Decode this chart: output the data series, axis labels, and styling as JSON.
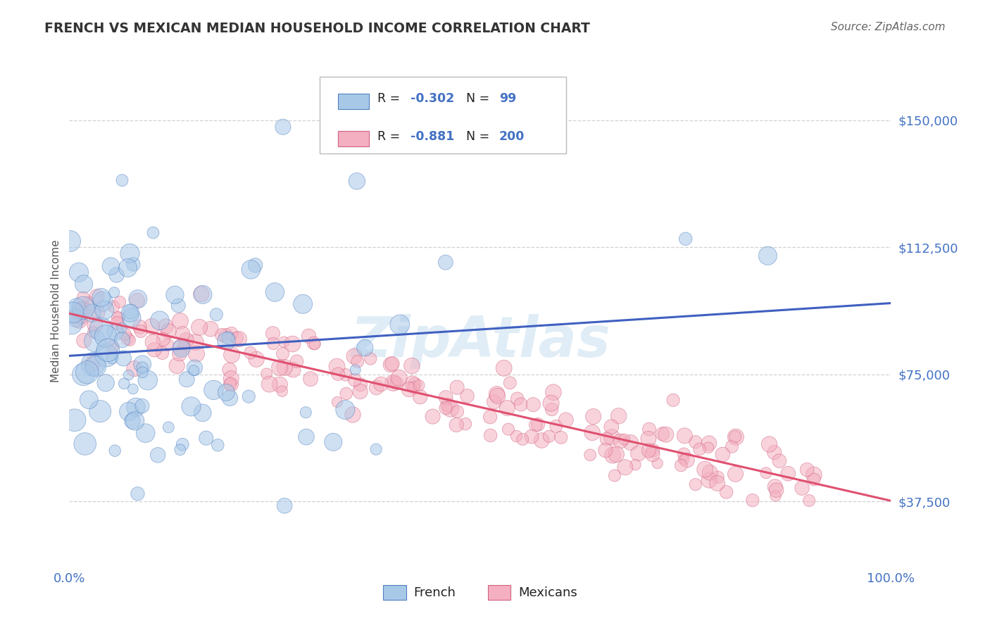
{
  "title": "FRENCH VS MEXICAN MEDIAN HOUSEHOLD INCOME CORRELATION CHART",
  "source_text": "Source: ZipAtlas.com",
  "ylabel": "Median Household Income",
  "watermark": "ZipAtlas",
  "xmin": 0.0,
  "xmax": 100.0,
  "ymin": 18750,
  "ymax": 168750,
  "yticks": [
    37500,
    75000,
    112500,
    150000
  ],
  "ytick_labels": [
    "$37,500",
    "$75,000",
    "$112,500",
    "$150,000"
  ],
  "xticks": [
    0,
    100
  ],
  "xtick_labels": [
    "0.0%",
    "100.0%"
  ],
  "french_R": "-0.302",
  "french_N": "99",
  "mexican_R": "-0.881",
  "mexican_N": "200",
  "french_color": "#a8c8e8",
  "mexican_color": "#f4b0c0",
  "french_edge_color": "#5080c0",
  "mexican_edge_color": "#d06080",
  "french_line_color": "#4060c0",
  "mexican_line_color": "#e05070",
  "axis_label_color": "#4472c4",
  "title_color": "#333333",
  "source_color": "#666666",
  "background_color": "#ffffff",
  "grid_color": "#cccccc",
  "watermark_color": "#c8dff0",
  "legend_text_color": "#222222",
  "legend_value_color": "#4472c4"
}
